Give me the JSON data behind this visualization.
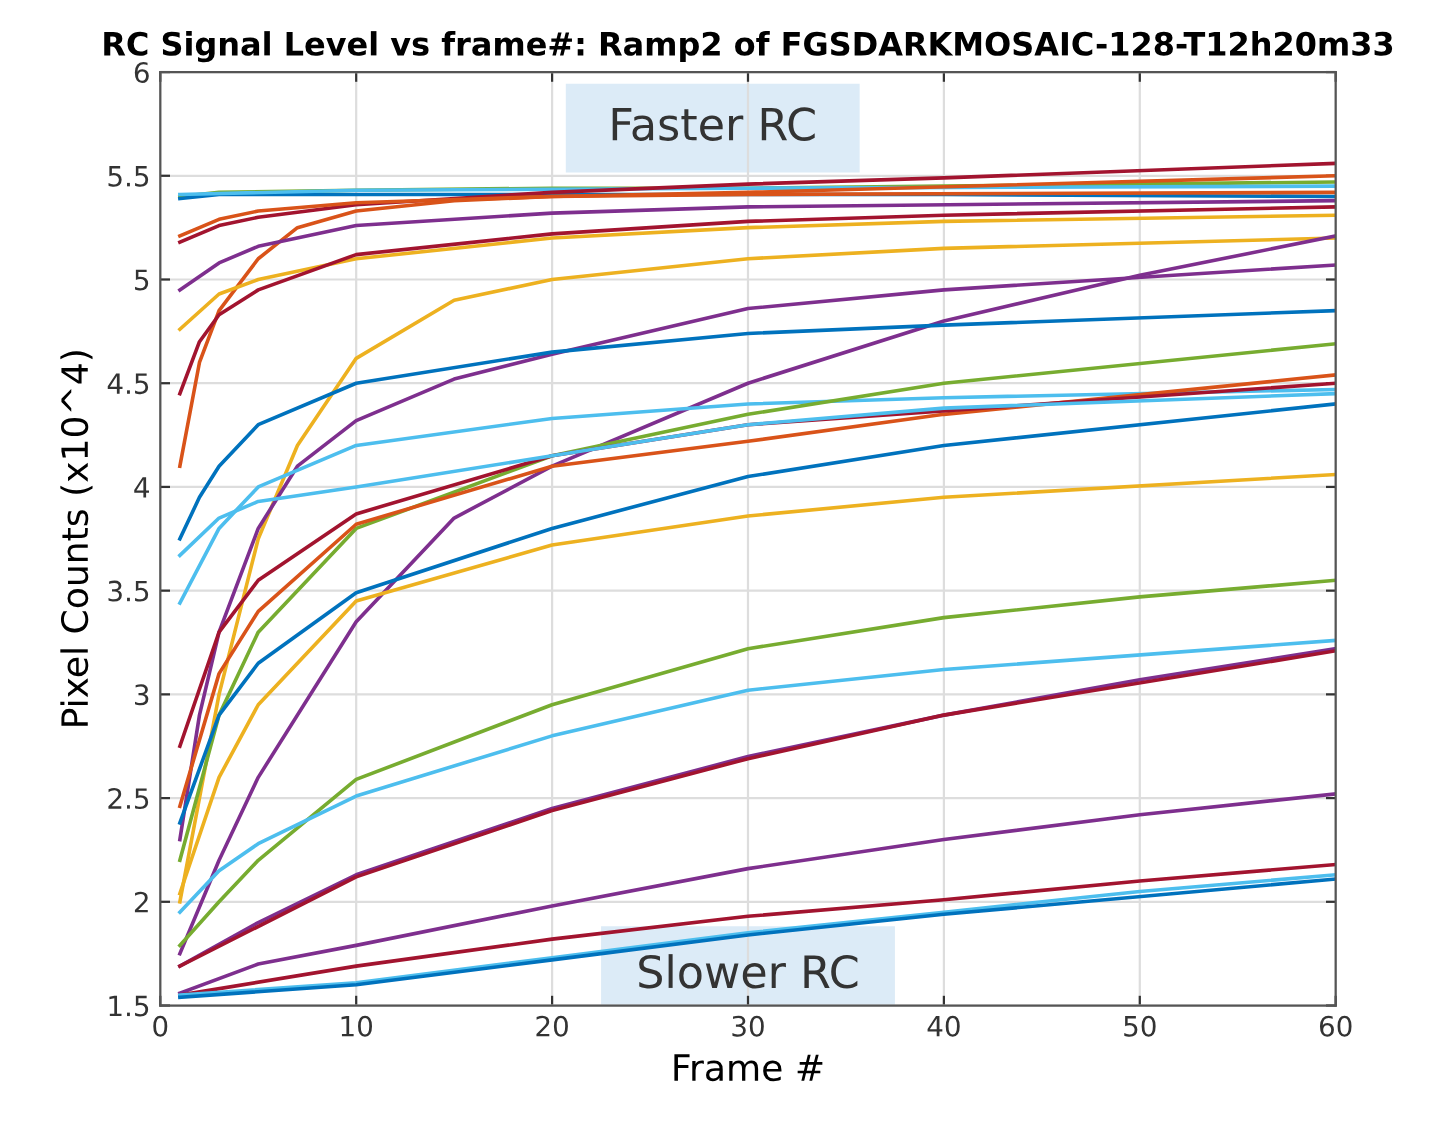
{
  "chart_data": {
    "type": "line",
    "title": "RC Signal Level vs frame#: Ramp2 of FGSDARKMOSAIC-128-T12h20m33",
    "xlabel": "Frame #",
    "ylabel": "Pixel Counts (x10^4)",
    "xlim": [
      0,
      60
    ],
    "ylim": [
      1.5,
      6
    ],
    "xticks": [
      0,
      10,
      20,
      30,
      40,
      50,
      60
    ],
    "yticks": [
      1.5,
      2,
      2.5,
      3,
      3.5,
      4,
      4.5,
      5,
      5.5,
      6
    ],
    "grid": true,
    "line_style": "solid",
    "marker": "none",
    "annotations": [
      "Faster RC",
      "Slower RC"
    ],
    "series": [
      {
        "color": "#77AC30",
        "x": [
          1,
          3,
          10,
          20,
          30,
          40,
          60
        ],
        "values": [
          5.4,
          5.42,
          5.43,
          5.44,
          5.44,
          5.45,
          5.47
        ]
      },
      {
        "color": "#0072BD",
        "x": [
          1,
          3,
          10,
          20,
          30,
          40,
          60
        ],
        "values": [
          5.39,
          5.41,
          5.41,
          5.41,
          5.41,
          5.41,
          5.4
        ]
      },
      {
        "color": "#4DBEEE",
        "x": [
          1,
          10,
          30,
          60
        ],
        "values": [
          5.41,
          5.43,
          5.44,
          5.45
        ]
      },
      {
        "color": "#A2142F",
        "x": [
          1,
          3,
          5,
          10,
          20,
          30,
          40,
          60
        ],
        "values": [
          5.18,
          5.26,
          5.3,
          5.36,
          5.42,
          5.46,
          5.49,
          5.56
        ]
      },
      {
        "color": "#D95319",
        "x": [
          1,
          3,
          5,
          10,
          20,
          30,
          60
        ],
        "values": [
          5.21,
          5.29,
          5.33,
          5.37,
          5.4,
          5.42,
          5.5
        ]
      },
      {
        "color": "#D95319",
        "x": [
          1,
          2,
          3,
          5,
          7,
          10,
          15,
          20,
          30,
          60
        ],
        "values": [
          4.1,
          4.6,
          4.85,
          5.1,
          5.25,
          5.33,
          5.38,
          5.4,
          5.41,
          5.42
        ]
      },
      {
        "color": "#7E2F8E",
        "x": [
          1,
          3,
          5,
          10,
          20,
          30,
          60
        ],
        "values": [
          4.95,
          5.08,
          5.16,
          5.26,
          5.32,
          5.35,
          5.38
        ]
      },
      {
        "color": "#EDB120",
        "x": [
          1,
          3,
          5,
          10,
          20,
          30,
          40,
          60
        ],
        "values": [
          4.76,
          4.93,
          5.0,
          5.1,
          5.2,
          5.25,
          5.28,
          5.31
        ]
      },
      {
        "color": "#A2142F",
        "x": [
          1,
          2,
          3,
          5,
          10,
          20,
          30,
          40,
          60
        ],
        "values": [
          4.45,
          4.7,
          4.83,
          4.95,
          5.12,
          5.22,
          5.28,
          5.31,
          5.35
        ]
      },
      {
        "color": "#EDB120",
        "x": [
          1,
          3,
          5,
          7,
          10,
          15,
          20,
          30,
          40,
          60
        ],
        "values": [
          2.0,
          3.0,
          3.75,
          4.2,
          4.62,
          4.9,
          5.0,
          5.1,
          5.15,
          5.2
        ]
      },
      {
        "color": "#7E2F8E",
        "x": [
          1,
          2,
          3,
          5,
          7,
          10,
          15,
          20,
          30,
          40,
          60
        ],
        "values": [
          2.3,
          2.9,
          3.3,
          3.8,
          4.1,
          4.32,
          4.52,
          4.64,
          4.86,
          4.95,
          5.07
        ]
      },
      {
        "color": "#7E2F8E",
        "x": [
          1,
          3,
          5,
          10,
          15,
          20,
          30,
          40,
          50,
          60
        ],
        "values": [
          1.75,
          2.2,
          2.6,
          3.35,
          3.85,
          4.1,
          4.5,
          4.8,
          5.02,
          5.21
        ]
      },
      {
        "color": "#0072BD",
        "x": [
          1,
          2,
          3,
          5,
          10,
          20,
          30,
          40,
          60
        ],
        "values": [
          3.75,
          3.95,
          4.1,
          4.3,
          4.5,
          4.65,
          4.74,
          4.78,
          4.85
        ]
      },
      {
        "color": "#4DBEEE",
        "x": [
          1,
          3,
          5,
          10,
          20,
          30,
          40,
          60
        ],
        "values": [
          3.44,
          3.8,
          4.0,
          4.2,
          4.33,
          4.4,
          4.43,
          4.47
        ]
      },
      {
        "color": "#77AC30",
        "x": [
          1,
          3,
          5,
          10,
          20,
          30,
          40,
          60
        ],
        "values": [
          2.2,
          2.9,
          3.3,
          3.8,
          4.15,
          4.35,
          4.5,
          4.69
        ]
      },
      {
        "color": "#D95319",
        "x": [
          1,
          3,
          5,
          10,
          20,
          30,
          40,
          60
        ],
        "values": [
          2.46,
          3.1,
          3.4,
          3.82,
          4.1,
          4.22,
          4.35,
          4.54
        ]
      },
      {
        "color": "#A2142F",
        "x": [
          1,
          3,
          5,
          10,
          20,
          30,
          60
        ],
        "values": [
          2.75,
          3.3,
          3.55,
          3.87,
          4.15,
          4.3,
          4.5
        ]
      },
      {
        "color": "#4DBEEE",
        "x": [
          1,
          3,
          5,
          10,
          20,
          30,
          40,
          60
        ],
        "values": [
          3.67,
          3.85,
          3.93,
          4.0,
          4.15,
          4.3,
          4.38,
          4.45
        ]
      },
      {
        "color": "#0072BD",
        "x": [
          1,
          3,
          5,
          10,
          20,
          30,
          40,
          60
        ],
        "values": [
          2.38,
          2.9,
          3.15,
          3.49,
          3.8,
          4.05,
          4.2,
          4.4
        ]
      },
      {
        "color": "#EDB120",
        "x": [
          1,
          3,
          5,
          10,
          20,
          30,
          40,
          60
        ],
        "values": [
          2.04,
          2.6,
          2.95,
          3.45,
          3.72,
          3.86,
          3.95,
          4.06
        ]
      },
      {
        "color": "#77AC30",
        "x": [
          1,
          3,
          5,
          10,
          20,
          30,
          40,
          50,
          60
        ],
        "values": [
          1.79,
          2.0,
          2.2,
          2.59,
          2.95,
          3.22,
          3.37,
          3.47,
          3.55
        ]
      },
      {
        "color": "#4DBEEE",
        "x": [
          1,
          3,
          5,
          10,
          20,
          30,
          40,
          60
        ],
        "values": [
          1.95,
          2.15,
          2.28,
          2.51,
          2.8,
          3.02,
          3.12,
          3.26
        ]
      },
      {
        "color": "#7E2F8E",
        "x": [
          1,
          5,
          10,
          20,
          30,
          40,
          50,
          60
        ],
        "values": [
          1.69,
          1.9,
          2.13,
          2.45,
          2.7,
          2.9,
          3.07,
          3.22
        ]
      },
      {
        "color": "#A2142F",
        "x": [
          1,
          10,
          20,
          30,
          40,
          60
        ],
        "values": [
          1.69,
          2.12,
          2.44,
          2.69,
          2.9,
          3.21
        ]
      },
      {
        "color": "#7E2F8E",
        "x": [
          1,
          5,
          10,
          20,
          30,
          40,
          50,
          60
        ],
        "values": [
          1.56,
          1.7,
          1.79,
          1.98,
          2.16,
          2.3,
          2.42,
          2.52
        ]
      },
      {
        "color": "#A2142F",
        "x": [
          1,
          10,
          20,
          30,
          40,
          50,
          60
        ],
        "values": [
          1.55,
          1.69,
          1.82,
          1.93,
          2.01,
          2.1,
          2.18
        ]
      },
      {
        "color": "#4DBEEE",
        "x": [
          1,
          10,
          20,
          30,
          40,
          50,
          60
        ],
        "values": [
          1.55,
          1.61,
          1.73,
          1.85,
          1.95,
          2.05,
          2.13
        ]
      },
      {
        "color": "#0072BD",
        "x": [
          1,
          10,
          20,
          30,
          40,
          60
        ],
        "values": [
          1.54,
          1.6,
          1.72,
          1.84,
          1.94,
          2.11
        ]
      }
    ]
  }
}
